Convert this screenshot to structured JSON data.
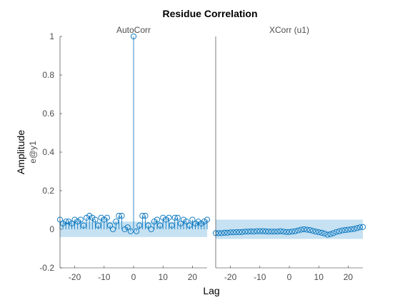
{
  "chart_data": {
    "type": "stem",
    "title": "Residue Correlation",
    "xlabel": "Lag",
    "ylabel": "Amplitude",
    "ylabel2": "e@y1",
    "colors": {
      "stem": "#0072bd",
      "band": "#c6e1f2",
      "axis": "#262626",
      "text": "#4d4d4d"
    },
    "panels": [
      {
        "name": "AutoCorr",
        "xlim": [
          -25,
          25
        ],
        "ylim": [
          -0.2,
          1
        ],
        "xticks": [
          -20,
          -10,
          0,
          10,
          20
        ],
        "yticks": [
          -0.2,
          0,
          0.2,
          0.4,
          0.6,
          0.8,
          1
        ],
        "confidence_band": [
          -0.04,
          0.04
        ],
        "stems": true,
        "x": [
          -25,
          -24,
          -23,
          -22,
          -21,
          -20,
          -19,
          -18,
          -17,
          -16,
          -15,
          -14,
          -13,
          -12,
          -11,
          -10,
          -9,
          -8,
          -7,
          -6,
          -5,
          -4,
          -3,
          -2,
          -1,
          0,
          1,
          2,
          3,
          4,
          5,
          6,
          7,
          8,
          9,
          10,
          11,
          12,
          13,
          14,
          15,
          16,
          17,
          18,
          19,
          20,
          21,
          22,
          23,
          24,
          25
        ],
        "y": [
          0.05,
          0.03,
          0.04,
          0.04,
          0.03,
          0.05,
          0.04,
          0.05,
          0.02,
          0.06,
          0.07,
          0.06,
          0.05,
          0.02,
          0.06,
          0.05,
          0.06,
          0.02,
          0.0,
          0.04,
          0.07,
          0.07,
          0.0,
          0.01,
          -0.01,
          1.0,
          -0.01,
          0.02,
          0.07,
          0.07,
          0.02,
          0.0,
          0.04,
          0.05,
          0.02,
          0.06,
          0.05,
          0.06,
          0.02,
          0.06,
          0.06,
          0.03,
          0.05,
          0.04,
          0.02,
          0.05,
          0.03,
          0.04,
          0.03,
          0.04,
          0.05
        ]
      },
      {
        "name": "XCorr (u1)",
        "xlim": [
          -25,
          25
        ],
        "ylim": [
          -0.2,
          1
        ],
        "xticks": [
          -20,
          -10,
          0,
          10,
          20
        ],
        "yticks": [],
        "confidence_band": [
          -0.05,
          0.05
        ],
        "stems": false,
        "x": [
          -25,
          -24,
          -23,
          -22,
          -21,
          -20,
          -19,
          -18,
          -17,
          -16,
          -15,
          -14,
          -13,
          -12,
          -11,
          -10,
          -9,
          -8,
          -7,
          -6,
          -5,
          -4,
          -3,
          -2,
          -1,
          0,
          1,
          2,
          3,
          4,
          5,
          6,
          7,
          8,
          9,
          10,
          11,
          12,
          13,
          14,
          15,
          16,
          17,
          18,
          19,
          20,
          21,
          22,
          23,
          24,
          25
        ],
        "y": [
          -0.02,
          -0.02,
          -0.02,
          -0.018,
          -0.018,
          -0.016,
          -0.016,
          -0.015,
          -0.015,
          -0.014,
          -0.012,
          -0.012,
          -0.011,
          -0.012,
          -0.01,
          -0.01,
          -0.01,
          -0.011,
          -0.012,
          -0.012,
          -0.012,
          -0.012,
          -0.01,
          -0.012,
          -0.014,
          -0.014,
          -0.012,
          -0.01,
          -0.006,
          -0.002,
          0.0,
          -0.002,
          -0.004,
          -0.008,
          -0.012,
          -0.015,
          -0.018,
          -0.022,
          -0.028,
          -0.025,
          -0.02,
          -0.014,
          -0.01,
          -0.006,
          -0.004,
          -0.002,
          0.0,
          0.002,
          0.006,
          0.01,
          0.012
        ]
      }
    ]
  }
}
